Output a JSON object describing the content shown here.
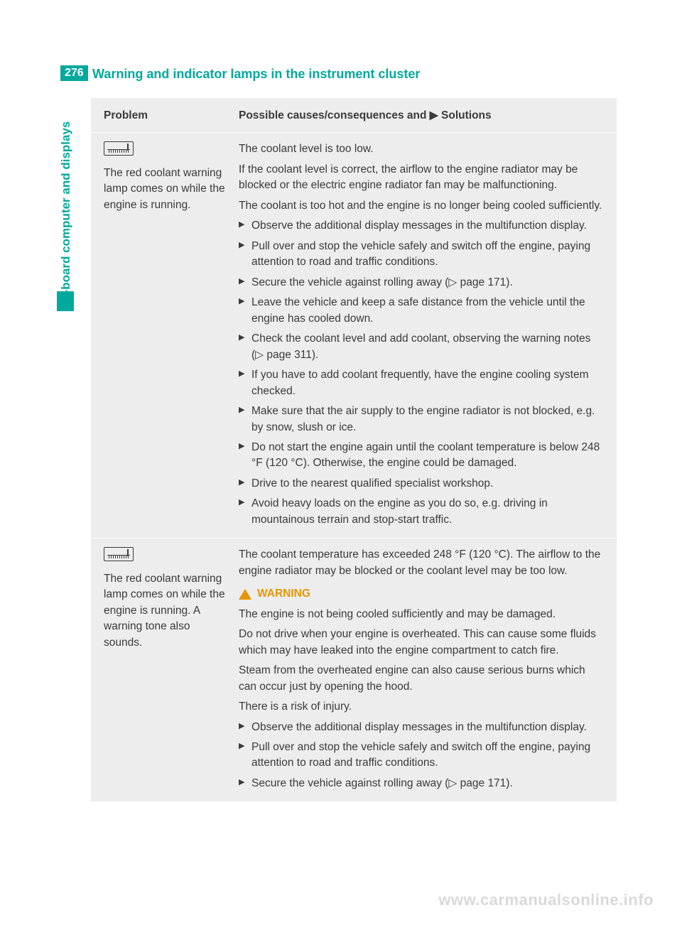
{
  "page_number": "276",
  "page_title": "Warning and indicator lamps in the instrument cluster",
  "side_tab": "On-board computer and displays",
  "table": {
    "header_problem": "Problem",
    "header_solution_prefix": "Possible causes/consequences and ",
    "header_solution_suffix": " Solutions",
    "header_arrow": "▶",
    "rows": [
      {
        "problem": "The red coolant warning lamp comes on while the engine is running.",
        "intro": [
          "The coolant level is too low.",
          "If the coolant level is correct, the airflow to the engine radiator may be blocked or the electric engine radiator fan may be malfunctioning.",
          "The coolant is too hot and the engine is no longer being cooled sufficiently."
        ],
        "steps": [
          "Observe the additional display messages in the multifunction display.",
          "Pull over and stop the vehicle safely and switch off the engine, paying attention to road and traffic conditions.",
          "Secure the vehicle against rolling away (▷ page 171).",
          "Leave the vehicle and keep a safe distance from the vehicle until the engine has cooled down.",
          "Check the coolant level and add coolant, observing the warning notes (▷ page 311).",
          "If you have to add coolant frequently, have the engine cooling system checked.",
          "Make sure that the air supply to the engine radiator is not blocked, e.g. by snow, slush or ice.",
          "Do not start the engine again until the coolant temperature is below 248 °F (120 °C). Otherwise, the engine could be damaged.",
          "Drive to the nearest qualified specialist workshop.",
          "Avoid heavy loads on the engine as you do so, e.g. driving in mountainous terrain and stop-start traffic."
        ]
      },
      {
        "problem": "The red coolant warning lamp comes on while the engine is running. A warning tone also sounds.",
        "intro": [
          "The coolant temperature has exceeded 248 °F (120 °C). The airflow to the engine radiator may be blocked or the coolant level may be too low."
        ],
        "warning_label": "WARNING",
        "warning_body": [
          "The engine is not being cooled sufficiently and may be damaged.",
          "Do not drive when your engine is overheated. This can cause some fluids which may have leaked into the engine compartment to catch fire.",
          "Steam from the overheated engine can also cause serious burns which can occur just by opening the hood.",
          "There is a risk of injury."
        ],
        "steps": [
          "Observe the additional display messages in the multifunction display.",
          "Pull over and stop the vehicle safely and switch off the engine, paying attention to road and traffic conditions.",
          "Secure the vehicle against rolling away (▷ page 171)."
        ]
      }
    ]
  },
  "watermark": "www.carmanualsonline.info",
  "colors": {
    "accent": "#00a99d",
    "bg_table": "#ededed",
    "text": "#3a3a3a",
    "warning": "#e69500"
  }
}
